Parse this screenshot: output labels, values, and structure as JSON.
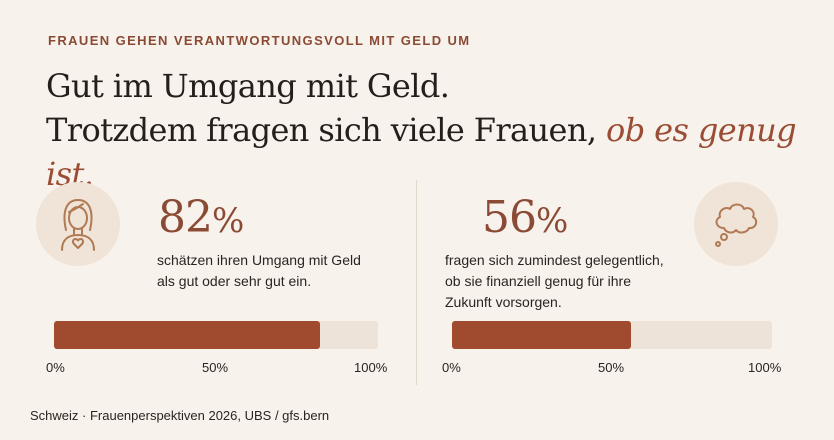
{
  "eyebrow": "FRAUEN GEHEN VERANTWORTUNGSVOLL MIT GELD UM",
  "headline": {
    "line1": "Gut im Umgang mit Geld.",
    "line2_start": "Trotzdem fragen sich viele Frauen, ",
    "line2_accent": "ob es genug ist."
  },
  "colors": {
    "accent": "#8b4a33",
    "bar_fill": "#a04a30",
    "bar_track": "#eee3d9",
    "background": "#f7f2ec"
  },
  "chart_data": [
    {
      "type": "bar",
      "icon": "woman-heart-icon",
      "value": 82,
      "value_label": "82",
      "unit": "%",
      "description_lines": [
        "schätzen ihren Umgang mit Geld",
        "als gut oder sehr gut ein."
      ],
      "xlim": [
        0,
        100
      ],
      "ticks": [
        "0%",
        "50%",
        "100%"
      ]
    },
    {
      "type": "bar",
      "icon": "thought-bubble-icon",
      "value": 56,
      "value_label": "56",
      "unit": "%",
      "description_lines": [
        "fragen sich zumindest gelegentlich,",
        "ob sie finanziell genug für ihre",
        "Zukunft vorsorgen."
      ],
      "xlim": [
        0,
        100
      ],
      "ticks": [
        "0%",
        "50%",
        "100%"
      ]
    }
  ],
  "source": "Schweiz · Frauenperspektiven 2026, UBS / gfs.bern"
}
